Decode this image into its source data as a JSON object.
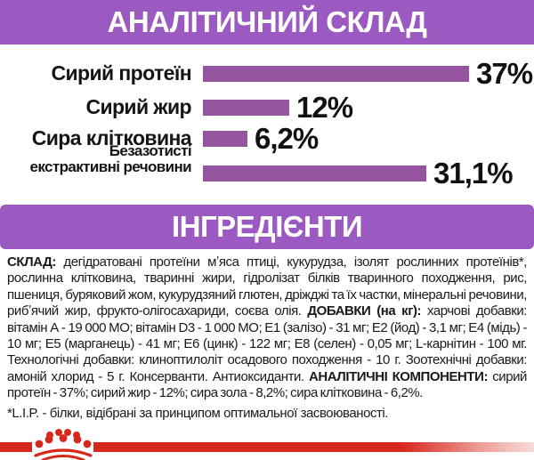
{
  "colors": {
    "header_purple": "#9b5ac1",
    "bar_purple": "#94549f",
    "brand_red": "#d7281d",
    "text_black": "#1a1a1a"
  },
  "header1": "АНАЛІТИЧНИЙ СКЛАД",
  "header2": "ІНГРЕДІЄНТИ",
  "chart_data": {
    "type": "bar",
    "orientation": "horizontal",
    "title": "АНАЛІТИЧНИЙ СКЛАД",
    "categories": [
      "Сирий протеїн",
      "Сирий жир",
      "Сира клітковина",
      "Безазотисті екстрактивні речовини"
    ],
    "values": [
      37,
      12,
      6.2,
      31.1
    ],
    "value_labels": [
      "37%",
      "12%",
      "6,2%",
      "31,1%"
    ],
    "display_lines": [
      [
        "Сирий протеїн"
      ],
      [
        "Сирий жир"
      ],
      [
        "Сира клітковина"
      ],
      [
        "Безазотисті",
        "екстрактивні речовини"
      ]
    ],
    "xlim": [
      0,
      37
    ],
    "bar_color": "#94549f",
    "grid": false,
    "legend": false
  },
  "ingredients": {
    "parts": [
      {
        "text": "СКЛАД:",
        "bold": true
      },
      {
        "text": " дегідратовані протеїни мʼяса птиці, кукурудза, ізолят рослинних протеїнів*, рослинна клітковина, тваринні жири, гідролізат білків тваринного походження, рис, пшениця, буряковий жом, кукурудзяний глютен, дріжджі та їх частки, мінеральні речовини, рибʼячий жир, фрукто-олігосахариди, соєва олія. ",
        "bold": false
      },
      {
        "text": "ДОБАВКИ (на кг):",
        "bold": true
      },
      {
        "text": " харчові добавки: вітамін А - 19 000 МО; вітамін D3 - 1 000 МО; Е1 (залізо) - 31 мг; Е2 (йод) - 3,1 мг; Е4 (мідь) - 10 мг; Е5 (марганець) - 41 мг; Е6 (цинк) - 122 мг; Е8 (селен) - 0,05 мг; L-карнітин - 100 мг. Технологічні добавки: клиноптилоліт осадового походження - 10 г. Зоотехнічні добавки: амоній хлорид - 5 г. Консерванти. Антиоксиданти. ",
        "bold": false
      },
      {
        "text": "АНАЛІТИЧНІ КОМПОНЕНТИ:",
        "bold": true
      },
      {
        "text": " сирий протеїн - 37%; сирий жир - 12%; сира зола - 8,2%; сира клітковина - 6,2%.",
        "bold": false
      }
    ],
    "footnote": "*L.I.P. - білки, відібрані за принципом оптимальної засвоюваності."
  },
  "logo": {
    "name": "royal-canin-crown"
  }
}
